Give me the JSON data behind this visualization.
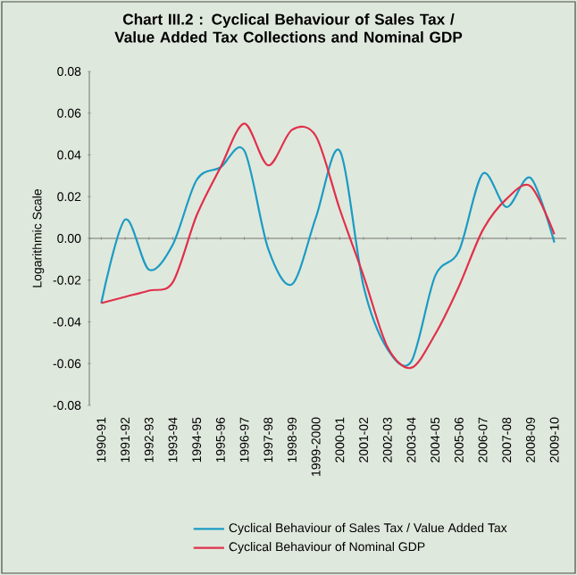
{
  "chart_data": {
    "type": "line",
    "title": "Chart III.2 : Cyclical Behaviour of Sales Tax / Value Added Tax Collections and Nominal GDP",
    "ylabel": "Logarithmic Scale",
    "categories": [
      "1990-91",
      "1991-92",
      "1992-93",
      "1993-94",
      "1994-95",
      "1995-96",
      "1996-97",
      "1997-98",
      "1998-99",
      "1999-2000",
      "2000-01",
      "2001-02",
      "2002-03",
      "2003-04",
      "2004-05",
      "2005-06",
      "2006-07",
      "2007-08",
      "2008-09",
      "2009-10"
    ],
    "series": [
      {
        "name": "Cyclical Behaviour of Sales Tax / Value Added Tax",
        "color": "#1b9bc4",
        "values": [
          -0.031,
          0.009,
          -0.015,
          -0.003,
          0.028,
          0.034,
          0.042,
          -0.005,
          -0.022,
          0.01,
          0.042,
          -0.023,
          -0.053,
          -0.059,
          -0.018,
          -0.006,
          0.031,
          0.015,
          0.029,
          -0.002
        ]
      },
      {
        "name": "Cyclical Behaviour of Nominal GDP",
        "color": "#e0304a",
        "values": [
          -0.031,
          -0.028,
          -0.025,
          -0.021,
          0.011,
          0.034,
          0.055,
          0.035,
          0.052,
          0.049,
          0.014,
          -0.018,
          -0.052,
          -0.062,
          -0.046,
          -0.023,
          0.004,
          0.019,
          0.025,
          0.002
        ]
      }
    ],
    "ylim": [
      -0.08,
      0.08
    ],
    "yticks": [
      -0.08,
      -0.06,
      -0.04,
      -0.02,
      {
        "value": 0,
        "label": "0.00"
      },
      0.02,
      0.04,
      0.06,
      0.08
    ],
    "legend": "bottom",
    "marker": "none",
    "line_style": "solid"
  }
}
